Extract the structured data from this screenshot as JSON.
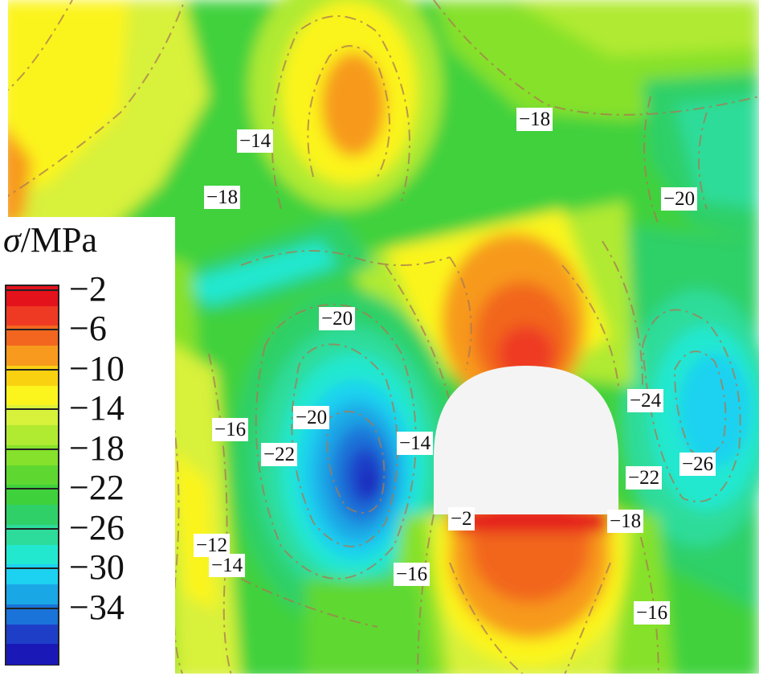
{
  "legend": {
    "symbol": "σ",
    "unit_suffix": "/MPa",
    "tick_labels": [
      "−2",
      "−6",
      "−10",
      "−14",
      "−18",
      "−22",
      "−26",
      "−30",
      "−34"
    ],
    "band_colors": [
      "#e4121b",
      "#ee3a22",
      "#f2661f",
      "#f79a1d",
      "#fad111",
      "#fbf41d",
      "#d8f13a",
      "#b0ea31",
      "#86e12c",
      "#5ed830",
      "#3fd13c",
      "#2fd068",
      "#2ddc9a",
      "#22e8d0",
      "#1cd2f0",
      "#1aa7e6",
      "#1a73d8",
      "#1e3ec8",
      "#1a19b8"
    ]
  },
  "contour_labels": [
    "−14",
    "−18",
    "−18",
    "−20",
    "−20",
    "−20",
    "−16",
    "−22",
    "−14",
    "−24",
    "−26",
    "−22",
    "−2",
    "−18",
    "−12",
    "−14",
    "−16",
    "−16"
  ]
}
